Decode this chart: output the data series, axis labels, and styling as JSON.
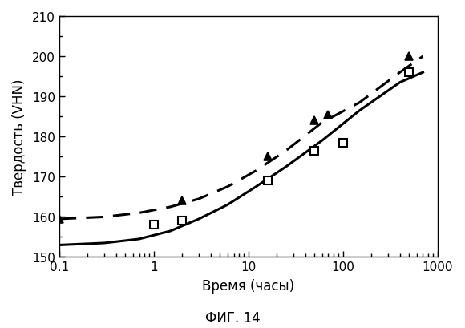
{
  "title": "ФИГ. 14",
  "xlabel": "Время (часы)",
  "ylabel": "Твердость (VHN)",
  "xlim": [
    0.1,
    1000
  ],
  "ylim": [
    150,
    210
  ],
  "yticks": [
    150,
    160,
    170,
    180,
    190,
    200,
    210
  ],
  "background_color": "#ffffff",
  "solid_line_x": [
    0.1,
    0.3,
    0.7,
    1.5,
    3.0,
    6.0,
    12.0,
    25.0,
    60.0,
    150.0,
    400.0,
    700.0
  ],
  "solid_line_y": [
    153.0,
    153.5,
    154.5,
    156.5,
    159.5,
    163.0,
    167.5,
    172.5,
    179.0,
    186.5,
    193.5,
    196.0
  ],
  "dashed_line_x": [
    0.1,
    0.3,
    0.7,
    1.5,
    3.0,
    6.0,
    12.0,
    25.0,
    60.0,
    150.0,
    400.0,
    700.0
  ],
  "dashed_line_y": [
    159.5,
    160.0,
    161.0,
    162.5,
    164.5,
    167.5,
    171.5,
    176.5,
    183.5,
    188.5,
    196.0,
    200.0
  ],
  "solid_markers_x": [
    1.0,
    2.0,
    16.0,
    50.0,
    100.0,
    500.0
  ],
  "solid_markers_y": [
    158.0,
    159.0,
    169.0,
    176.5,
    178.5,
    196.0
  ],
  "dashed_markers_x": [
    0.1,
    2.0,
    16.0,
    50.0,
    70.0,
    500.0
  ],
  "dashed_markers_y": [
    159.5,
    164.0,
    175.0,
    184.0,
    185.5,
    200.0
  ],
  "line_color": "#000000",
  "line_width": 2.2,
  "marker_size": 7
}
